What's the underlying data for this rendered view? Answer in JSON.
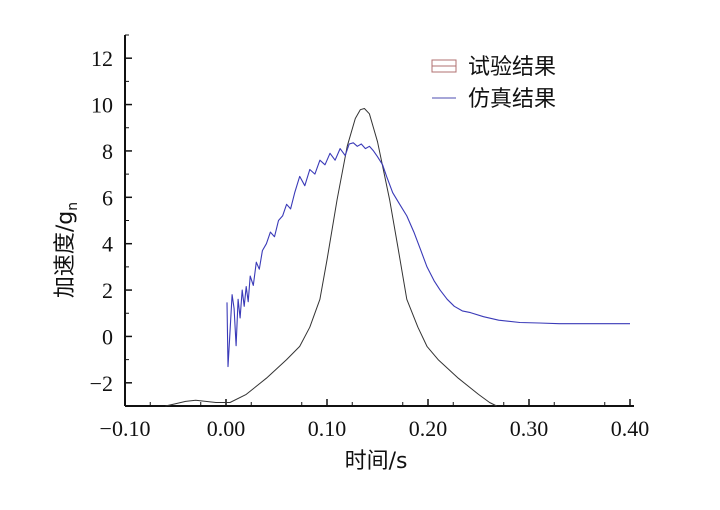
{
  "chart_data": {
    "type": "line",
    "title": "",
    "xlabel": "时间/s",
    "ylabel": "加速度/g",
    "ylabel_sub": "n",
    "xlim": [
      -0.1,
      0.4
    ],
    "ylim": [
      -3,
      13
    ],
    "xticks": [
      -0.1,
      0.0,
      0.1,
      0.2,
      0.3,
      0.4
    ],
    "xtick_labels": [
      "−0.10",
      "0.00",
      "0.10",
      "0.20",
      "0.30",
      "0.40"
    ],
    "yticks": [
      -2,
      0,
      2,
      4,
      6,
      8,
      10,
      12
    ],
    "ytick_labels": [
      "−2",
      "0",
      "2",
      "4",
      "6",
      "8",
      "10",
      "12"
    ],
    "grid": false,
    "legend_position": "top-right",
    "series": [
      {
        "name": "试验结果",
        "color": "#333333",
        "legend_color": "#b07070",
        "x": [
          -0.06,
          -0.05,
          -0.04,
          -0.03,
          -0.02,
          -0.01,
          0.0,
          0.004,
          0.02,
          0.04,
          0.06,
          0.073,
          0.083,
          0.093,
          0.1,
          0.11,
          0.12,
          0.128,
          0.133,
          0.137,
          0.142,
          0.15,
          0.162,
          0.17,
          0.179,
          0.19,
          0.199,
          0.21,
          0.23,
          0.25,
          0.261,
          0.268
        ],
        "y": [
          -3.0,
          -2.9,
          -2.8,
          -2.75,
          -2.8,
          -2.85,
          -2.85,
          -2.85,
          -2.5,
          -1.8,
          -1.0,
          -0.43,
          0.4,
          1.6,
          3.3,
          5.9,
          8.2,
          9.4,
          9.78,
          9.83,
          9.6,
          8.4,
          5.9,
          3.9,
          1.6,
          0.4,
          -0.43,
          -1.0,
          -1.8,
          -2.5,
          -2.85,
          -3.0
        ]
      },
      {
        "name": "仿真结果",
        "color": "#3a3ab8",
        "legend_color": "#7070c0",
        "x": [
          0.001,
          0.002,
          0.004,
          0.006,
          0.008,
          0.01,
          0.012,
          0.014,
          0.016,
          0.018,
          0.02,
          0.022,
          0.024,
          0.027,
          0.03,
          0.033,
          0.036,
          0.04,
          0.044,
          0.048,
          0.052,
          0.056,
          0.06,
          0.064,
          0.068,
          0.073,
          0.078,
          0.083,
          0.088,
          0.093,
          0.098,
          0.103,
          0.108,
          0.113,
          0.118,
          0.122,
          0.126,
          0.13,
          0.134,
          0.138,
          0.142,
          0.146,
          0.15,
          0.155,
          0.159,
          0.165,
          0.172,
          0.179,
          0.186,
          0.193,
          0.199,
          0.206,
          0.212,
          0.219,
          0.226,
          0.234,
          0.242,
          0.255,
          0.27,
          0.291,
          0.31,
          0.33,
          0.35,
          0.37,
          0.39,
          0.4
        ],
        "y": [
          1.47,
          -1.3,
          0.2,
          1.8,
          1.2,
          -0.4,
          1.6,
          0.8,
          2.0,
          1.3,
          2.15,
          1.5,
          2.6,
          2.2,
          3.2,
          2.9,
          3.7,
          4.0,
          4.5,
          4.3,
          5.0,
          5.2,
          5.7,
          5.5,
          6.2,
          6.9,
          6.5,
          7.2,
          7.0,
          7.6,
          7.4,
          7.9,
          7.6,
          8.1,
          7.8,
          8.3,
          8.35,
          8.2,
          8.3,
          8.1,
          8.2,
          8.0,
          7.75,
          7.4,
          6.9,
          6.2,
          5.7,
          5.2,
          4.5,
          3.7,
          3.0,
          2.4,
          2.0,
          1.6,
          1.3,
          1.1,
          1.03,
          0.85,
          0.7,
          0.6,
          0.58,
          0.55,
          0.55,
          0.55,
          0.55,
          0.55
        ]
      }
    ]
  }
}
